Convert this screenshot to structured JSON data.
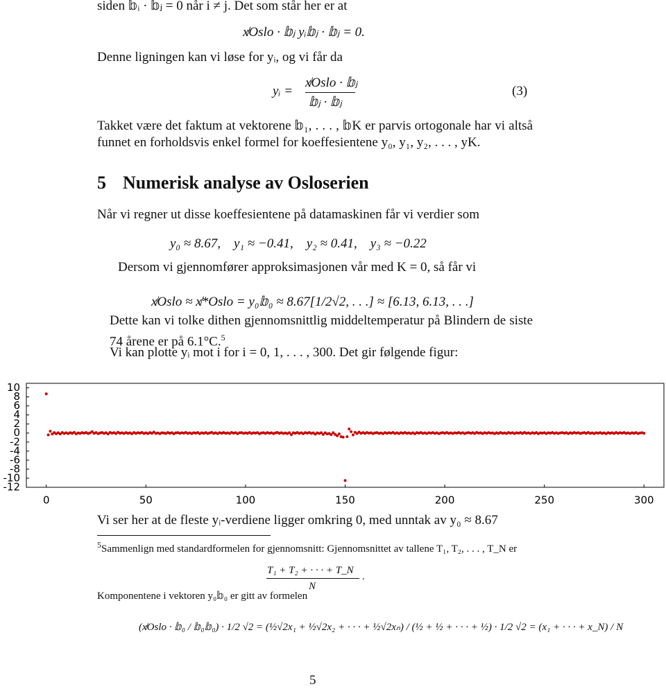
{
  "document": {
    "p0": "siden 𝕓ᵢ · 𝕓ⱼ = 0 når i ≠ j. Det som står her er at",
    "eq0": "x̸Oslo · 𝕓ⱼ   yᵢ𝕓ⱼ · 𝕓ⱼ = 0.",
    "p1": "Denne ligningen kan vi løse for yᵢ, og vi får da",
    "eq1": {
      "lhs": "yᵢ =",
      "numerator": "x̸Oslo · 𝕓ⱼ",
      "denominator": "𝕓ⱼ · 𝕓ⱼ",
      "number": "(3)"
    },
    "p2": "Takket være det faktum at vektorene 𝕓₁, . . . , 𝕓K er parvis ortogonale har vi altså funnet en forholdsvis enkel formel for koeffesientene y₀, y₁, y₂, . . . , yK.",
    "heading": {
      "number": "5",
      "title": "Numerisk analyse av Osloserien"
    },
    "p3": "Når vi regner ut disse koeffesientene på datamaskinen får vi verdier som",
    "eq2": "y₀ ≈ 8.67,    y₁ ≈ −0.41,    y₂ ≈ 0.41,    y₃ ≈ −0.22",
    "p4": "Dersom vi gjennomfører approksimasjonen vår med K = 0, så får vi",
    "eq3": "x̸Oslo ≈ x̸*Oslo = y₀𝕓₀ ≈ 8.67[1/2√2, . . .] ≈ [6.13, 6.13, . . .]",
    "p5": "Dette kan vi tolke dithen gjennomsnittlig middeltemperatur på Blindern de siste 74 årene er på 6.1°C.",
    "p5_mark": "5",
    "p6": "Vi kan plotte yᵢ mot i for i = 0, 1, . . . , 300. Det gir følgende figur:",
    "p7": "Vi ser her at de fleste yᵢ-verdiene ligger omkring 0, med unntak av y₀ ≈ 8.67",
    "footnote": {
      "mark": "5",
      "text": "Sammenlign med standardformelen for gjennomsnitt: Gjennomsnittet av tallene T₁, T₂, . . . , T_N er",
      "eq_numerator": "T₁ + T₂ + · · · + T_N",
      "eq_denominator": "N",
      "eq_end": ".",
      "p": "Komponentene i vektoren y₀𝕓₀ er gitt av formelen",
      "eq": "(x̸Oslo · 𝕓₀ / 𝕓₀𝕓₀) · 1/2 √2 = (½√2x₁ + ½√2x₂ + · · · + ½√2xₙ) / (½ + ½ + · · · + ½) · 1/2 √2 = (x₁ + · · · + x_N) / N"
    },
    "page_number": "5"
  },
  "chart_data": {
    "type": "scatter",
    "color": "#cc0000",
    "xlim": [
      -10,
      310
    ],
    "ylim": [
      -12,
      11
    ],
    "xticks": [
      0,
      50,
      100,
      150,
      200,
      250,
      300
    ],
    "yticks": [
      10,
      8,
      6,
      4,
      2,
      0,
      -2,
      -4,
      -6,
      -8,
      -10,
      -12
    ],
    "x": [
      0,
      1,
      2,
      3,
      4,
      5,
      6,
      7,
      8,
      9,
      10,
      11,
      12,
      13,
      14,
      15,
      16,
      17,
      18,
      19,
      20,
      21,
      22,
      23,
      24,
      25,
      26,
      27,
      28,
      29,
      30,
      31,
      32,
      33,
      34,
      35,
      36,
      37,
      38,
      39,
      40,
      41,
      42,
      43,
      44,
      45,
      46,
      47,
      48,
      49,
      50,
      51,
      52,
      53,
      54,
      55,
      56,
      57,
      58,
      59,
      60,
      61,
      62,
      63,
      64,
      65,
      66,
      67,
      68,
      69,
      70,
      71,
      72,
      73,
      74,
      75,
      76,
      77,
      78,
      79,
      80,
      81,
      82,
      83,
      84,
      85,
      86,
      87,
      88,
      89,
      90,
      91,
      92,
      93,
      94,
      95,
      96,
      97,
      98,
      99,
      100,
      101,
      102,
      103,
      104,
      105,
      106,
      107,
      108,
      109,
      110,
      111,
      112,
      113,
      114,
      115,
      116,
      117,
      118,
      119,
      120,
      121,
      122,
      123,
      124,
      125,
      126,
      127,
      128,
      129,
      130,
      131,
      132,
      133,
      134,
      135,
      136,
      137,
      138,
      139,
      140,
      141,
      142,
      143,
      144,
      145,
      146,
      147,
      148,
      149,
      150,
      151,
      152,
      153,
      154,
      155,
      156,
      157,
      158,
      159,
      160,
      161,
      162,
      163,
      164,
      165,
      166,
      167,
      168,
      169,
      170,
      171,
      172,
      173,
      174,
      175,
      176,
      177,
      178,
      179,
      180,
      181,
      182,
      183,
      184,
      185,
      186,
      187,
      188,
      189,
      190,
      191,
      192,
      193,
      194,
      195,
      196,
      197,
      198,
      199,
      200,
      201,
      202,
      203,
      204,
      205,
      206,
      207,
      208,
      209,
      210,
      211,
      212,
      213,
      214,
      215,
      216,
      217,
      218,
      219,
      220,
      221,
      222,
      223,
      224,
      225,
      226,
      227,
      228,
      229,
      230,
      231,
      232,
      233,
      234,
      235,
      236,
      237,
      238,
      239,
      240,
      241,
      242,
      243,
      244,
      245,
      246,
      247,
      248,
      249,
      250,
      251,
      252,
      253,
      254,
      255,
      256,
      257,
      258,
      259,
      260,
      261,
      262,
      263,
      264,
      265,
      266,
      267,
      268,
      269,
      270,
      271,
      272,
      273,
      274,
      275,
      276,
      277,
      278,
      279,
      280,
      281,
      282,
      283,
      284,
      285,
      286,
      287,
      288,
      289,
      290,
      291,
      292,
      293,
      294,
      295,
      296,
      297,
      298,
      299,
      300
    ],
    "values": [
      8.67,
      -0.41,
      0.41,
      -0.22,
      0.1,
      -0.15,
      0.05,
      -0.2,
      0.12,
      -0.1,
      0.05,
      -0.12,
      0.08,
      -0.05,
      0.15,
      -0.18,
      0.02,
      -0.08,
      0.1,
      -0.03,
      0.12,
      -0.1,
      0.04,
      0.3,
      -0.06,
      0.09,
      -0.14,
      0.02,
      0.11,
      -0.07,
      0.06,
      -0.2,
      0.13,
      -0.02,
      0.08,
      -0.11,
      0.17,
      -0.04,
      0.05,
      -0.09,
      0.1,
      -0.06,
      0.03,
      -0.15,
      0.12,
      -0.08,
      0.07,
      -0.03,
      0.14,
      -0.1,
      0.04,
      -0.12,
      0.09,
      -0.05,
      0.2,
      -0.07,
      0.02,
      -0.13,
      0.06,
      0.01,
      -0.09,
      0.11,
      -0.04,
      0.07,
      -0.16,
      0.03,
      0.1,
      -0.06,
      0.05,
      -0.02,
      0.13,
      -0.08,
      0.04,
      -0.11,
      0.08,
      -0.03,
      0.12,
      -0.14,
      0.06,
      -0.05,
      0.09,
      -0.1,
      0.02,
      0.15,
      -0.07,
      0.05,
      -0.12,
      0.08,
      -0.04,
      0.11,
      -0.06,
      0.03,
      -0.09,
      0.14,
      -0.02,
      0.07,
      -0.13,
      0.05,
      0.1,
      -0.08,
      0.04,
      -0.05,
      0.12,
      -0.1,
      0.06,
      -0.03,
      0.09,
      -0.15,
      0.02,
      0.08,
      -0.07,
      0.1,
      -0.04,
      0.05,
      -0.12,
      0.03,
      0.13,
      -0.06,
      0.07,
      -0.09,
      0.02,
      -0.11,
      0.08,
      -0.35,
      0.06,
      -0.04,
      0.11,
      -0.08,
      0.05,
      -0.14,
      0.09,
      -0.02,
      0.12,
      -0.07,
      0.04,
      -0.25,
      0.03,
      -0.1,
      0.07,
      -0.3,
      0.05,
      -0.2,
      -0.1,
      -0.35,
      0.08,
      -0.3,
      -0.6,
      -0.2,
      -0.8,
      -0.9,
      -10.5,
      -0.8,
      0.9,
      0.3,
      -0.4,
      0.15,
      -0.1,
      0.2,
      -0.05,
      0.1,
      -0.08,
      0.12,
      -0.03,
      0.06,
      -0.11,
      0.04,
      0.09,
      -0.07,
      0.02,
      -0.13,
      0.1,
      -0.05,
      0.07,
      -0.02,
      0.13,
      -0.09,
      0.05,
      -0.12,
      0.08,
      -0.04,
      0.11,
      -0.06,
      0.03,
      -0.1,
      0.06,
      -0.15,
      0.09,
      -0.02,
      0.12,
      -0.08,
      0.04,
      -0.11,
      0.07,
      -0.03,
      0.1,
      -0.07,
      0.05,
      -0.13,
      0.02,
      0.09,
      -0.05,
      0.12,
      -0.08,
      0.04,
      -0.1,
      0.06,
      -0.03,
      0.11,
      -0.06,
      0.08,
      -0.12,
      0.03,
      0.09,
      -0.04,
      0.07,
      -0.09,
      0.13,
      -0.02,
      0.05,
      -0.11,
      0.08,
      -0.06,
      0.1,
      -0.03,
      0.04,
      -0.14,
      0.06,
      -0.07,
      0.12,
      -0.05,
      0.02,
      -0.09,
      0.11,
      -0.04,
      0.07,
      -0.12,
      0.05,
      -0.02,
      0.09,
      -0.08,
      0.13,
      -0.05,
      0.03,
      -0.1,
      0.08,
      -0.06,
      0.1,
      -0.13,
      0.04,
      -0.03,
      0.07,
      -0.11,
      0.05,
      -0.02,
      0.12,
      -0.07,
      0.06,
      -0.09,
      0.03,
      0.1,
      -0.04,
      0.08,
      -0.12,
      0.05,
      -0.06,
      0.11,
      -0.03,
      0.07,
      -0.1,
      0.02,
      0.09,
      -0.05,
      0.13,
      -0.08,
      0.04,
      -0.11,
      0.06,
      -0.02,
      0.1,
      -0.07,
      0.03,
      -0.13,
      0.08,
      -0.04,
      0.05,
      -0.09,
      0.12,
      -0.06,
      0.07,
      -0.03,
      0.11,
      -0.08,
      0.04,
      -0.1,
      0.06,
      -0.05,
      0.09,
      -0.12,
      0.02,
      0.08,
      -0.06
    ]
  }
}
